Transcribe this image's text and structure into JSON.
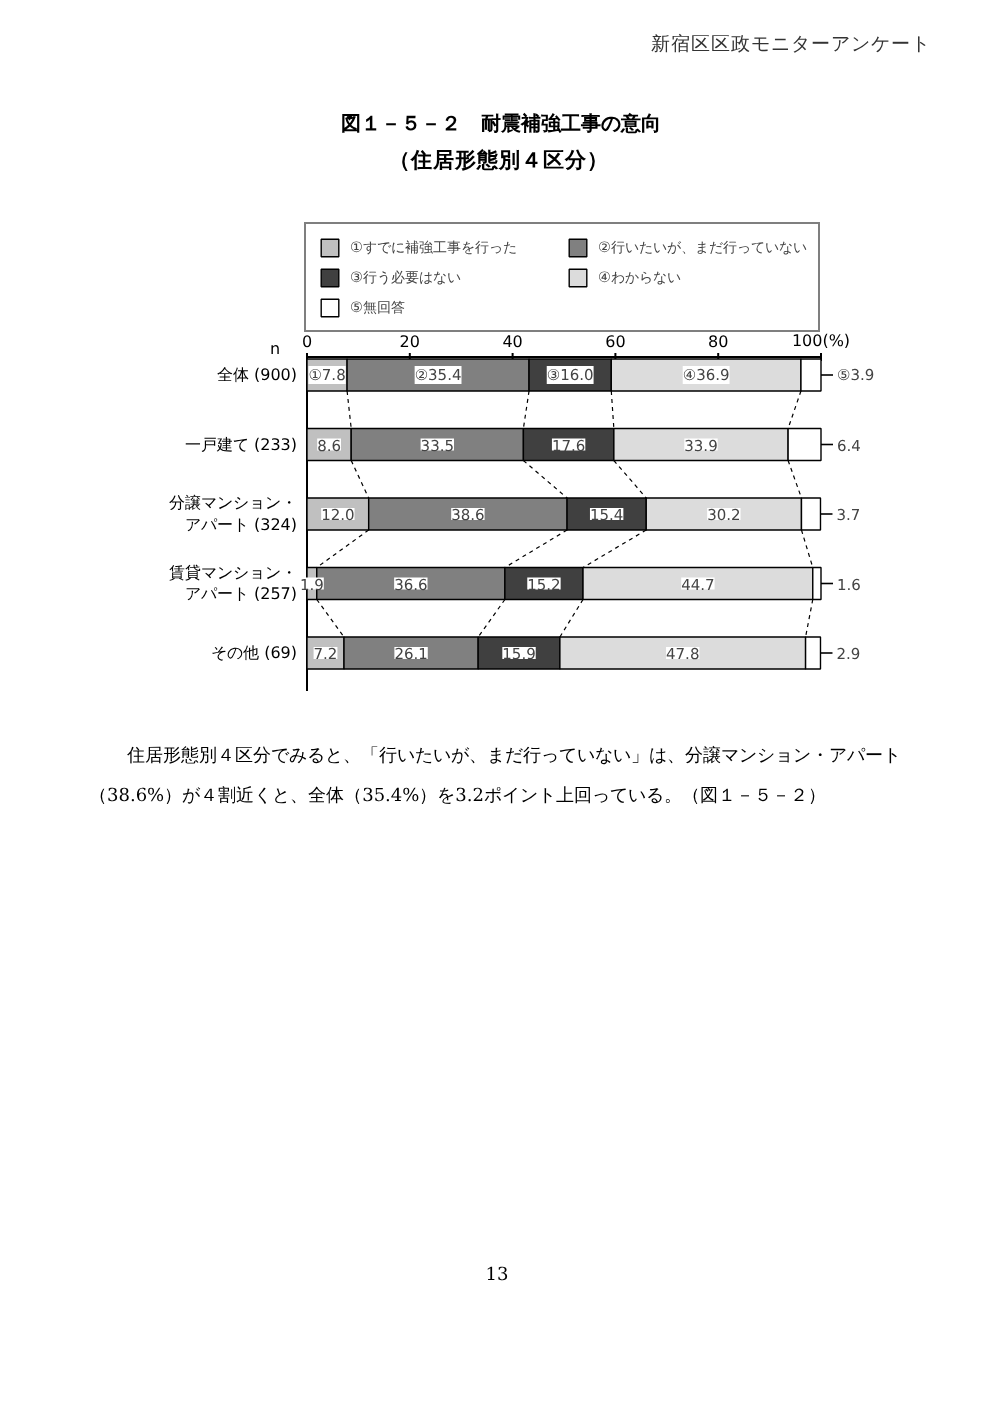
{
  "chart_data": {
    "type": "bar",
    "orientation": "horizontal",
    "stacked": true,
    "title": "図１－５－２　耐震補強工事の意向",
    "subtitle": "（住居形態別４区分）",
    "categories": [
      "全体 (900)",
      "一戸建て (233)",
      "分譲マンション・アパート (324)",
      "賃貸マンション・アパート (257)",
      "その他 (69)"
    ],
    "series": [
      {
        "name": "①すでに補強工事を行った",
        "color": "#c0c0c0",
        "values": [
          7.8,
          8.6,
          12.0,
          1.9,
          7.2
        ],
        "value_labels": [
          "①7.8",
          "8.6",
          "12.0",
          "1.9",
          "7.2"
        ]
      },
      {
        "name": "②行いたいが、まだ行っていない",
        "color": "#808080",
        "values": [
          35.4,
          33.5,
          38.6,
          36.6,
          26.1
        ],
        "value_labels": [
          "②35.4",
          "33.5",
          "38.6",
          "36.6",
          "26.1"
        ]
      },
      {
        "name": "③行う必要はない",
        "color": "#404040",
        "values": [
          16.0,
          17.6,
          15.4,
          15.2,
          15.9
        ],
        "value_labels": [
          "③16.0",
          "17.6",
          "15.4",
          "15.2",
          "15.9"
        ]
      },
      {
        "name": "④わからない",
        "color": "#dcdcdc",
        "values": [
          36.9,
          33.9,
          30.2,
          44.7,
          47.8
        ],
        "value_labels": [
          "④36.9",
          "33.9",
          "30.2",
          "44.7",
          "47.8"
        ]
      },
      {
        "name": "⑤無回答",
        "color": "#ffffff",
        "values": [
          3.9,
          6.4,
          3.7,
          1.6,
          2.9
        ],
        "value_labels": [
          "⑤3.9",
          "6.4",
          "3.7",
          "1.6",
          "2.9"
        ]
      }
    ],
    "xlim": [
      0,
      100
    ],
    "xticks": [
      0,
      20,
      40,
      60,
      80,
      {
        "value": 100,
        "label": "100(%)"
      }
    ],
    "legend": "top",
    "annotations": [
      "新宿区区政モニターアンケート",
      "n",
      "住居形態別４区分でみると、「行いたいが、まだ行っていない」は、分譲マンション・アパート（38.6%）が４割近くと、全体（35.4%）を3.2ポイント上回っている。（図１－５－２）",
      "13"
    ]
  }
}
